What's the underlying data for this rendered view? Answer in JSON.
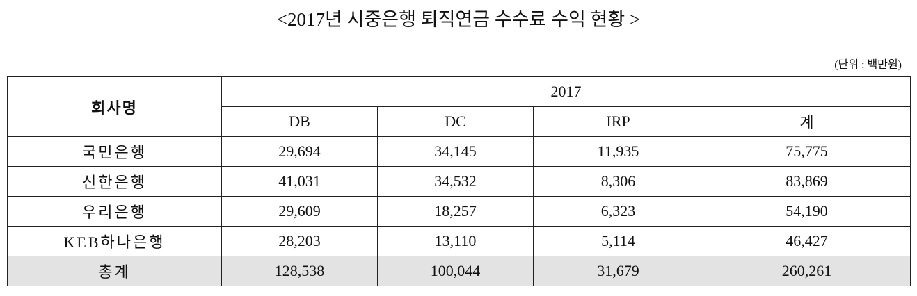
{
  "header": {
    "title": "<2017년 시중은행 퇴직연금 수수료 수익 현황 >",
    "unit": "(단위 : 백만원)"
  },
  "table": {
    "company_header": "회사명",
    "year": "2017",
    "columns": [
      "DB",
      "DC",
      "IRP",
      "계"
    ],
    "rows": [
      [
        "국민은행",
        "29,694",
        "34,145",
        "11,935",
        "75,775"
      ],
      [
        "신한은행",
        "41,031",
        "34,532",
        "8,306",
        "83,869"
      ],
      [
        "우리은행",
        "29,609",
        "18,257",
        "6,323",
        "54,190"
      ],
      [
        "KEB하나은행",
        "28,203",
        "13,110",
        "5,114",
        "46,427"
      ],
      [
        "총계",
        "128,538",
        "100,044",
        "31,679",
        "260,261"
      ]
    ]
  }
}
